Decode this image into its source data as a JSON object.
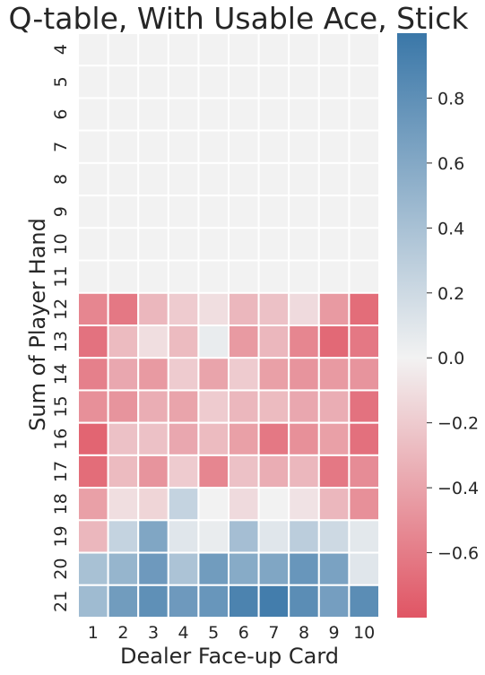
{
  "chart_data": {
    "type": "heatmap",
    "title": "Q-table, With Usable Ace, Stick",
    "xlabel": "Dealer Face-up Card",
    "ylabel": "Sum of Player Hand",
    "x_categories": [
      "1",
      "2",
      "3",
      "4",
      "5",
      "6",
      "7",
      "8",
      "9",
      "10"
    ],
    "y_categories": [
      "4",
      "5",
      "6",
      "7",
      "8",
      "9",
      "10",
      "11",
      "12",
      "13",
      "14",
      "15",
      "16",
      "17",
      "18",
      "19",
      "20",
      "21"
    ],
    "values": [
      [
        0,
        0,
        0,
        0,
        0,
        0,
        0,
        0,
        0,
        0
      ],
      [
        0,
        0,
        0,
        0,
        0,
        0,
        0,
        0,
        0,
        0
      ],
      [
        0,
        0,
        0,
        0,
        0,
        0,
        0,
        0,
        0,
        0
      ],
      [
        0,
        0,
        0,
        0,
        0,
        0,
        0,
        0,
        0,
        0
      ],
      [
        0,
        0,
        0,
        0,
        0,
        0,
        0,
        0,
        0,
        0
      ],
      [
        0,
        0,
        0,
        0,
        0,
        0,
        0,
        0,
        0,
        0
      ],
      [
        0,
        0,
        0,
        0,
        0,
        0,
        0,
        0,
        0,
        0
      ],
      [
        0,
        0,
        0,
        0,
        0,
        0,
        0,
        0,
        0,
        0
      ],
      [
        -0.55,
        -0.62,
        -0.3,
        -0.2,
        -0.1,
        -0.3,
        -0.25,
        -0.12,
        -0.45,
        -0.68
      ],
      [
        -0.65,
        -0.28,
        -0.1,
        -0.28,
        0.05,
        -0.45,
        -0.3,
        -0.55,
        -0.7,
        -0.62
      ],
      [
        -0.58,
        -0.38,
        -0.45,
        -0.2,
        -0.4,
        -0.2,
        -0.42,
        -0.48,
        -0.45,
        -0.48
      ],
      [
        -0.5,
        -0.48,
        -0.35,
        -0.4,
        -0.2,
        -0.3,
        -0.28,
        -0.38,
        -0.35,
        -0.65
      ],
      [
        -0.72,
        -0.25,
        -0.25,
        -0.38,
        -0.28,
        -0.42,
        -0.62,
        -0.5,
        -0.42,
        -0.66
      ],
      [
        -0.68,
        -0.28,
        -0.48,
        -0.2,
        -0.55,
        -0.25,
        -0.35,
        -0.3,
        -0.62,
        -0.52
      ],
      [
        -0.42,
        -0.1,
        -0.15,
        0.25,
        0.0,
        -0.12,
        0.0,
        -0.08,
        -0.3,
        -0.5
      ],
      [
        -0.3,
        0.25,
        0.62,
        0.1,
        0.05,
        0.42,
        0.1,
        0.3,
        0.2,
        0.08
      ],
      [
        0.4,
        0.5,
        0.72,
        0.38,
        0.7,
        0.58,
        0.62,
        0.75,
        0.65,
        0.1
      ],
      [
        0.45,
        0.7,
        0.8,
        0.72,
        0.75,
        0.9,
        0.95,
        0.82,
        0.68,
        0.82
      ]
    ],
    "colorbar": {
      "vmin": -0.8,
      "vmax": 1.0,
      "ticks": [
        {
          "value": 0.8,
          "label": "0.8"
        },
        {
          "value": 0.6,
          "label": "0.6"
        },
        {
          "value": 0.4,
          "label": "0.4"
        },
        {
          "value": 0.2,
          "label": "0.2"
        },
        {
          "value": 0.0,
          "label": "0.0"
        },
        {
          "value": -0.2,
          "label": "−0.2"
        },
        {
          "value": -0.4,
          "label": "−0.4"
        },
        {
          "value": -0.6,
          "label": "−0.6"
        }
      ]
    },
    "colors": {
      "negative": "#e05564",
      "center": "#f2f2f2",
      "positive": "#3a77a8",
      "grid": "#ffffff"
    }
  }
}
